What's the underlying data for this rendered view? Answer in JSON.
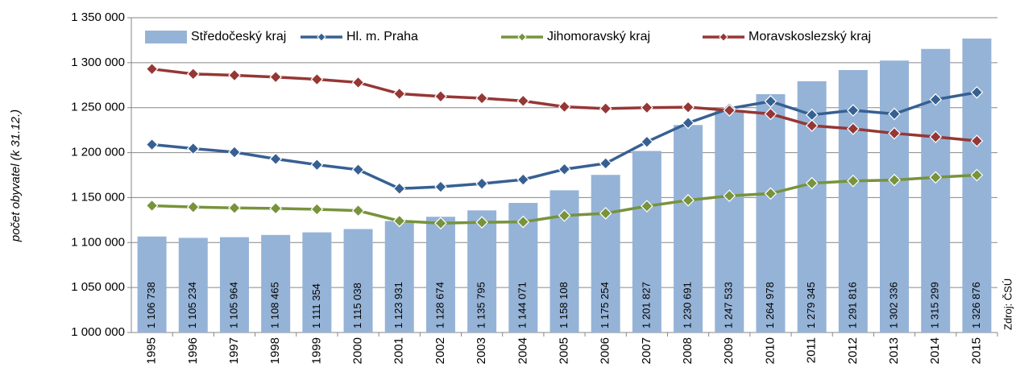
{
  "chart_data": {
    "type": "bar",
    "y_label": "počet obyvatel (k 31.12.)",
    "source": "Zdroj: ČSÚ",
    "categories": [
      "1995",
      "1996",
      "1997",
      "1998",
      "1999",
      "2000",
      "2001",
      "2002",
      "2003",
      "2004",
      "2005",
      "2006",
      "2007",
      "2008",
      "2009",
      "2010",
      "2011",
      "2012",
      "2013",
      "2014",
      "2015"
    ],
    "series": [
      {
        "name": "Středočeský kraj",
        "type": "bar",
        "color": "#95b3d7",
        "values": [
          1106738,
          1105234,
          1105964,
          1108465,
          1111354,
          1115038,
          1123931,
          1128674,
          1135795,
          1144071,
          1158108,
          1175254,
          1201827,
          1230691,
          1247533,
          1264978,
          1279345,
          1291816,
          1302336,
          1315299,
          1326876
        ],
        "value_labels": [
          "1 106 738",
          "1 105 234",
          "1 105 964",
          "1 108 465",
          "1 111 354",
          "1 115 038",
          "1 123 931",
          "1 128 674",
          "1 135 795",
          "1 144 071",
          "1 158 108",
          "1 175 254",
          "1 201 827",
          "1 230 691",
          "1 247 533",
          "1 264 978",
          "1 279 345",
          "1 291 816",
          "1 302 336",
          "1 315 299",
          "1 326 876"
        ]
      },
      {
        "name": "Hl. m. Praha",
        "type": "line",
        "color": "#376092",
        "values": [
          1209000,
          1204500,
          1200500,
          1193000,
          1186500,
          1181000,
          1160000,
          1162000,
          1165500,
          1170000,
          1181500,
          1188000,
          1212000,
          1233000,
          1249000,
          1257000,
          1242000,
          1247000,
          1243000,
          1259000,
          1267000
        ]
      },
      {
        "name": "Jihomoravský kraj",
        "type": "line",
        "color": "#77933c",
        "values": [
          1141000,
          1139500,
          1138500,
          1138000,
          1137000,
          1135500,
          1124000,
          1121500,
          1122500,
          1123000,
          1130000,
          1132500,
          1140500,
          1147000,
          1152000,
          1154500,
          1166000,
          1168500,
          1169500,
          1172500,
          1175000
        ]
      },
      {
        "name": "Moravskoslezský kraj",
        "type": "line",
        "color": "#953735",
        "values": [
          1293000,
          1287500,
          1286000,
          1284000,
          1281500,
          1278000,
          1265500,
          1262500,
          1260500,
          1257500,
          1251000,
          1249000,
          1250000,
          1250500,
          1247000,
          1243000,
          1230000,
          1226500,
          1221500,
          1217500,
          1213000
        ]
      }
    ],
    "ylim": [
      1000000,
      1350000
    ],
    "yticks": [
      {
        "value": 1000000,
        "label": "1 000 000"
      },
      {
        "value": 1050000,
        "label": "1 050 000"
      },
      {
        "value": 1100000,
        "label": "1 100 000"
      },
      {
        "value": 1150000,
        "label": "1 150 000"
      },
      {
        "value": 1200000,
        "label": "1 200 000"
      },
      {
        "value": 1250000,
        "label": "1 250 000"
      },
      {
        "value": 1300000,
        "label": "1 300 000"
      },
      {
        "value": 1350000,
        "label": "1 350 000"
      }
    ],
    "grid": true
  }
}
